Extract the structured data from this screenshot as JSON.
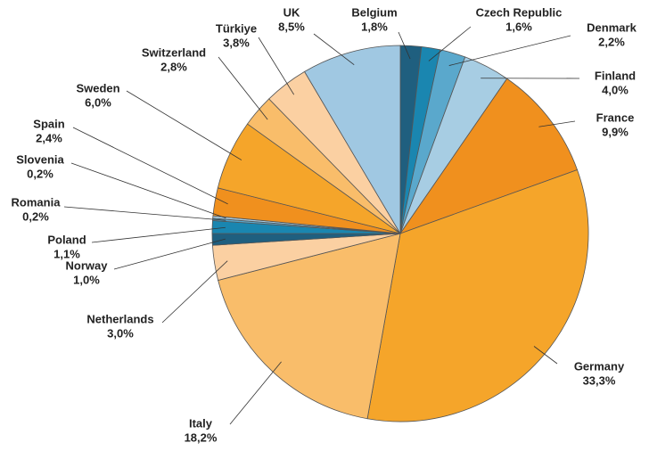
{
  "chart_data": {
    "type": "pie",
    "categories": [
      "Belgium",
      "Czech Republic",
      "Denmark",
      "Finland",
      "France",
      "Germany",
      "Italy",
      "Netherlands",
      "Norway",
      "Poland",
      "Romania",
      "Slovenia",
      "Spain",
      "Sweden",
      "Switzerland",
      "Türkiye",
      "UK"
    ],
    "values": [
      1.8,
      1.6,
      2.2,
      4.0,
      9.9,
      33.3,
      18.2,
      3.0,
      1.0,
      1.1,
      0.2,
      0.2,
      2.4,
      6.0,
      2.8,
      3.8,
      8.5
    ],
    "value_labels": [
      "1,8%",
      "1,6%",
      "2,2%",
      "4,0%",
      "9,9%",
      "33,3%",
      "18,2%",
      "3,0%",
      "1,0%",
      "1,1%",
      "0,2%",
      "0,2%",
      "2,4%",
      "6,0%",
      "2,8%",
      "3,8%",
      "8,5%"
    ],
    "colors": [
      "#1f5f7f",
      "#1a86b0",
      "#5aa8cc",
      "#a7cde3",
      "#f0901e",
      "#f5a52a",
      "#f9bd6a",
      "#fbd0a2",
      "#1f5f7f",
      "#1a86b0",
      "#5aa8cc",
      "#a7cde3",
      "#f0901e",
      "#f5a52a",
      "#f9bd6a",
      "#fbd0a2",
      "#a0c8e2"
    ]
  }
}
